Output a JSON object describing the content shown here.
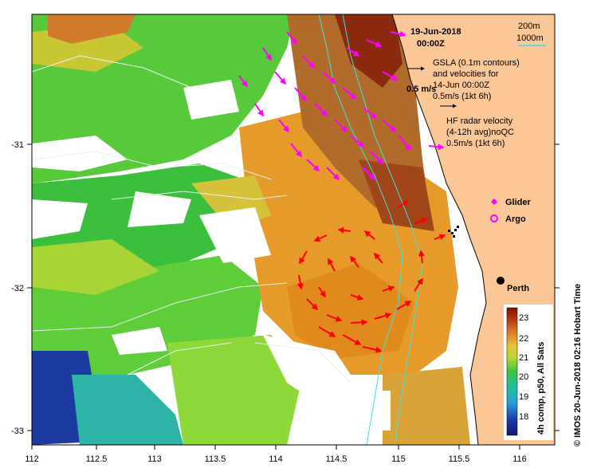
{
  "title": {
    "date": "19-Jun-2018",
    "time": "00:00Z"
  },
  "depth_legend": {
    "d200": "200m",
    "d1000": "1000m"
  },
  "gsla_legend": {
    "line1": "GSLA (0.1m contours)",
    "line2": "and velocities for",
    "line3": "14-Jun 00:00Z",
    "line4": "0.5m/s (1kt 6h)",
    "scale_label": "0.5 m/s"
  },
  "hf_legend": {
    "line1": "HF radar velocity",
    "line2": "(4-12h avg)noQC",
    "line3": "0.5m/s (1kt 6h)"
  },
  "markers": {
    "glider": "Glider",
    "argo": "Argo",
    "city": "Perth"
  },
  "axes": {
    "x_ticks": [
      "112",
      "112.5",
      "113",
      "113.5",
      "114",
      "114.5",
      "115",
      "115.5",
      "116"
    ],
    "y_ticks": [
      "-31",
      "-32",
      "-33"
    ]
  },
  "colorbar": {
    "ticks": [
      "23",
      "22",
      "21",
      "20",
      "19",
      "18"
    ],
    "label": "4h comp, p50, All Sats",
    "colors": {
      "c23": "#8b1a00",
      "c22": "#d8732a",
      "c21": "#e8c23a",
      "c20": "#3cc23c",
      "c19": "#2a9bd6",
      "c18": "#1a1a90"
    }
  },
  "credit": "© IMOS 20-Jun-2018 02:16 Hobart Time",
  "colors": {
    "land": "#fbc797",
    "gsla_arrow": "#ff00ff",
    "hf_arrow": "#ff0000",
    "contour": "#3fe0e0"
  }
}
